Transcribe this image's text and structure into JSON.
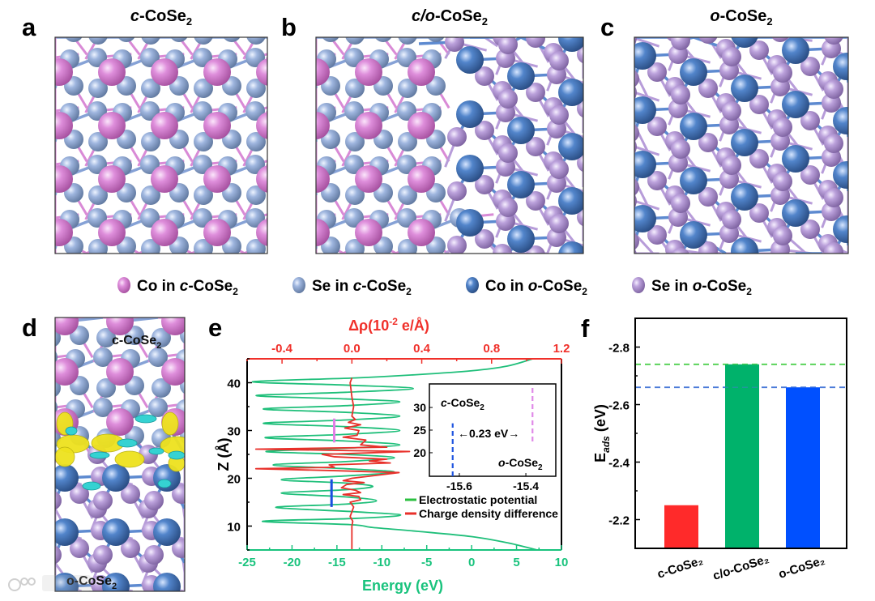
{
  "panels": {
    "a": {
      "label": "a",
      "title": {
        "italic": "c",
        "main": "-CoSe",
        "sub": "2"
      }
    },
    "b": {
      "label": "b",
      "title": {
        "italic": "c/o",
        "main": "-CoSe",
        "sub": "2"
      }
    },
    "c": {
      "label": "c",
      "title": {
        "italic": "o",
        "main": "-CoSe",
        "sub": "2"
      }
    },
    "d": {
      "label": "d",
      "top_text": {
        "main": "c-CoSe",
        "sub": "2"
      },
      "bottom_text": {
        "main": "o-CoSe",
        "sub": "2"
      }
    },
    "e": {
      "label": "e"
    },
    "f": {
      "label": "f"
    }
  },
  "legend": [
    {
      "prefix": "Co in ",
      "italic": "c",
      "main": "-CoSe",
      "sub": "2",
      "color": "#d98ad6"
    },
    {
      "prefix": "Se in ",
      "italic": "c",
      "main": "-CoSe",
      "sub": "2",
      "color": "#9db4de"
    },
    {
      "prefix": "Co in ",
      "italic": "o",
      "main": "-CoSe",
      "sub": "2",
      "color": "#4f7fc6"
    },
    {
      "prefix": "Se in ",
      "italic": "o",
      "main": "-CoSe",
      "sub": "2",
      "color": "#b79cd9"
    }
  ],
  "watermark": "大数跨境",
  "chart_data": [
    {
      "id": "e",
      "type": "line",
      "title_top": {
        "main": "Δρ(10",
        "sup": "-2",
        "tail": " e/Å)"
      },
      "xlabel": "Energy (eV)",
      "ylabel": "Z (Å)",
      "xlim": [
        -25,
        10
      ],
      "x2lim": [
        -0.6,
        1.2
      ],
      "ylim": [
        5,
        45
      ],
      "xticks": [
        -25,
        -20,
        -15,
        -10,
        -5,
        0,
        5,
        10
      ],
      "x2ticks": [
        "-0.4",
        "0.0",
        "0.4",
        "0.8",
        "1.2"
      ],
      "yticks": [
        10,
        20,
        30,
        40
      ],
      "colors": {
        "potential": "#1fbf7a",
        "charge": "#e8302a",
        "bottom_axis": "#19c37d",
        "top_axis": "#f0302a"
      },
      "series": [
        {
          "name": "Electrostatic potential",
          "axis": "bottom",
          "points": [
            [
              7.3,
              5
            ],
            [
              4,
              6.5
            ],
            [
              0,
              7.8
            ],
            [
              -6,
              8.9
            ],
            [
              -11,
              9.7
            ],
            [
              -13.5,
              10.3
            ],
            [
              -23.3,
              11.0
            ],
            [
              -13,
              11.6
            ],
            [
              -7.9,
              12.3
            ],
            [
              -13,
              13.0
            ],
            [
              -21.8,
              13.9
            ],
            [
              -14,
              14.6
            ],
            [
              -10.6,
              15.3
            ],
            [
              -14,
              16.1
            ],
            [
              -21.2,
              16.9
            ],
            [
              -14,
              17.6
            ],
            [
              -11,
              18.3
            ],
            [
              -14,
              19.0
            ],
            [
              -21.2,
              19.7
            ],
            [
              -14,
              20.5
            ],
            [
              -8.6,
              21.3
            ],
            [
              -14,
              22.0
            ],
            [
              -22.1,
              22.8
            ],
            [
              -14,
              23.5
            ],
            [
              -8.6,
              24.3
            ],
            [
              -14,
              25.0
            ],
            [
              -22.9,
              25.6
            ],
            [
              -14,
              26.3
            ],
            [
              -8,
              27.0
            ],
            [
              -14,
              27.8
            ],
            [
              -23,
              28.5
            ],
            [
              -14,
              29.2
            ],
            [
              -8,
              30.0
            ],
            [
              -14,
              30.8
            ],
            [
              -23.2,
              31.5
            ],
            [
              -14,
              32.2
            ],
            [
              -8,
              33.0
            ],
            [
              -14,
              33.8
            ],
            [
              -23.2,
              34.5
            ],
            [
              -14,
              35.2
            ],
            [
              -8,
              36.0
            ],
            [
              -14,
              36.6
            ],
            [
              -24,
              37.3
            ],
            [
              -14,
              38.0
            ],
            [
              -6.5,
              38.8
            ],
            [
              -14,
              39.5
            ],
            [
              -24.4,
              40.2
            ],
            [
              -13,
              41.0
            ],
            [
              -6,
              41.7
            ],
            [
              0,
              42.5
            ],
            [
              4,
              43.5
            ],
            [
              6.8,
              45
            ]
          ]
        },
        {
          "name": "Charge density difference",
          "axis": "top",
          "points": [
            [
              0,
              5
            ],
            [
              0,
              10
            ],
            [
              0.005,
              11
            ],
            [
              -0.01,
              12
            ],
            [
              0,
              13
            ],
            [
              0.01,
              14
            ],
            [
              -0.01,
              15
            ],
            [
              0.05,
              15.5
            ],
            [
              0.04,
              16.2
            ],
            [
              -0.05,
              16.6
            ],
            [
              0.05,
              17
            ],
            [
              0.02,
              17.5
            ],
            [
              -0.06,
              18
            ],
            [
              -0.03,
              18.7
            ],
            [
              0.07,
              19.1
            ],
            [
              -0.05,
              19.5
            ],
            [
              0,
              20
            ],
            [
              0.27,
              21.2
            ],
            [
              -0.1,
              21.6
            ],
            [
              -0.55,
              22.0
            ],
            [
              -0.1,
              22.3
            ],
            [
              -0.13,
              22.8
            ],
            [
              0.22,
              23.2
            ],
            [
              0.1,
              23.6
            ],
            [
              0.2,
              24.0
            ],
            [
              -0.1,
              24.5
            ],
            [
              -0.17,
              25.0
            ],
            [
              0.33,
              25.6
            ],
            [
              -0.55,
              26.1
            ],
            [
              0.2,
              26.5
            ],
            [
              0.05,
              27
            ],
            [
              0.08,
              28
            ],
            [
              -0.05,
              28.6
            ],
            [
              0.03,
              29
            ],
            [
              0.04,
              30
            ],
            [
              -0.04,
              30.5
            ],
            [
              0.05,
              31.2
            ],
            [
              -0.02,
              31.7
            ],
            [
              0.02,
              32.3
            ],
            [
              0,
              33
            ],
            [
              0.01,
              35
            ],
            [
              0,
              37
            ],
            [
              -0.01,
              40
            ],
            [
              0,
              41
            ]
          ]
        }
      ],
      "markers": [
        {
          "name": "c-CoSe2 level",
          "energy": -15.3,
          "z_range": [
            27.5,
            32.5
          ],
          "color": "#e27fe6"
        },
        {
          "name": "o-CoSe2 level",
          "energy": -15.6,
          "z_range": [
            14,
            19.8
          ],
          "color": "#1a4fe0"
        }
      ],
      "inset": {
        "xlim": [
          -15.69,
          -15.31
        ],
        "ylim": [
          14.8,
          35.2
        ],
        "xticks": [
          "-15.6",
          "-15.4"
        ],
        "yticks": [
          "20",
          "25",
          "30"
        ],
        "lines": [
          {
            "energy": -15.62,
            "z_range": [
              14.8,
              26.5
            ],
            "color": "#1f55e0"
          },
          {
            "energy": -15.38,
            "z_range": [
              22.5,
              34.5
            ],
            "color": "#e08ae8"
          }
        ],
        "c_label": {
          "italic": "c",
          "main": "-CoSe",
          "sub": "2"
        },
        "o_label": {
          "italic": "o",
          "main": "-CoSe",
          "sub": "2"
        },
        "gap_label": "←0.23 eV→"
      },
      "legend": [
        "Electrostatic potential",
        "Charge density difference"
      ],
      "legend_position": "bottom-right"
    },
    {
      "id": "f",
      "type": "bar",
      "categories": [
        "c-CoSe₂",
        "c/o-CoSe₂",
        "o-CoSe₂"
      ],
      "values": [
        -2.25,
        -2.74,
        -2.66
      ],
      "colors": [
        "#ff2a2a",
        "#00b26b",
        "#0050ff"
      ],
      "ylabel": {
        "main": "E",
        "sub": "ads",
        "tail": " (eV)"
      },
      "ylim": [
        -2.1,
        -2.9
      ],
      "yticks": [
        "-2.8",
        "-2.6",
        "-2.4",
        "-2.2"
      ],
      "reference_lines": [
        {
          "value": -2.74,
          "color": "#4fd04f"
        },
        {
          "value": -2.66,
          "color": "#4a7ad8"
        }
      ]
    }
  ]
}
